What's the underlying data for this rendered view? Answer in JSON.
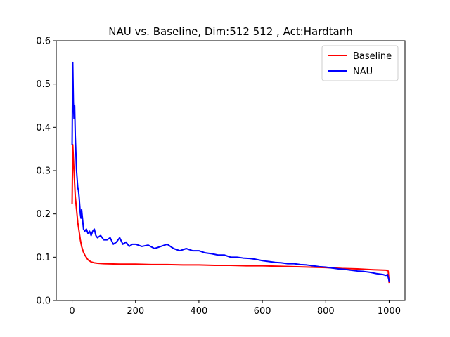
{
  "chart_data": {
    "type": "line",
    "title": "NAU vs. Baseline, Dim:512 512 , Act:Hardtanh",
    "xlabel": "",
    "ylabel": "",
    "xlim": [
      -50,
      1050
    ],
    "ylim": [
      0.0,
      0.6
    ],
    "xticks": [
      0,
      200,
      400,
      600,
      800,
      1000
    ],
    "yticks": [
      0.0,
      0.1,
      0.2,
      0.3,
      0.4,
      0.5,
      0.6
    ],
    "grid": false,
    "legend_position": "top-right",
    "series": [
      {
        "name": "Baseline",
        "color": "#ff0000",
        "points": [
          [
            0,
            0.225
          ],
          [
            2,
            0.36
          ],
          [
            4,
            0.33
          ],
          [
            6,
            0.3
          ],
          [
            8,
            0.27
          ],
          [
            10,
            0.24
          ],
          [
            14,
            0.21
          ],
          [
            18,
            0.18
          ],
          [
            22,
            0.16
          ],
          [
            26,
            0.14
          ],
          [
            30,
            0.125
          ],
          [
            35,
            0.113
          ],
          [
            40,
            0.105
          ],
          [
            50,
            0.094
          ],
          [
            60,
            0.089
          ],
          [
            70,
            0.087
          ],
          [
            80,
            0.086
          ],
          [
            100,
            0.085
          ],
          [
            150,
            0.084
          ],
          [
            200,
            0.084
          ],
          [
            250,
            0.083
          ],
          [
            300,
            0.083
          ],
          [
            350,
            0.082
          ],
          [
            400,
            0.082
          ],
          [
            450,
            0.081
          ],
          [
            500,
            0.081
          ],
          [
            550,
            0.08
          ],
          [
            600,
            0.08
          ],
          [
            650,
            0.079
          ],
          [
            700,
            0.078
          ],
          [
            750,
            0.077
          ],
          [
            800,
            0.076
          ],
          [
            850,
            0.074
          ],
          [
            900,
            0.073
          ],
          [
            950,
            0.071
          ],
          [
            990,
            0.07
          ],
          [
            997,
            0.068
          ],
          [
            1000,
            0.042
          ]
        ]
      },
      {
        "name": "NAU",
        "color": "#0000ff",
        "points": [
          [
            0,
            0.36
          ],
          [
            2,
            0.55
          ],
          [
            4,
            0.46
          ],
          [
            6,
            0.42
          ],
          [
            8,
            0.45
          ],
          [
            10,
            0.38
          ],
          [
            12,
            0.34
          ],
          [
            14,
            0.3
          ],
          [
            16,
            0.28
          ],
          [
            18,
            0.26
          ],
          [
            20,
            0.255
          ],
          [
            22,
            0.24
          ],
          [
            24,
            0.22
          ],
          [
            26,
            0.2
          ],
          [
            28,
            0.19
          ],
          [
            30,
            0.21
          ],
          [
            32,
            0.195
          ],
          [
            34,
            0.18
          ],
          [
            36,
            0.165
          ],
          [
            40,
            0.16
          ],
          [
            45,
            0.165
          ],
          [
            50,
            0.155
          ],
          [
            55,
            0.16
          ],
          [
            60,
            0.15
          ],
          [
            65,
            0.16
          ],
          [
            70,
            0.165
          ],
          [
            75,
            0.15
          ],
          [
            80,
            0.145
          ],
          [
            90,
            0.15
          ],
          [
            100,
            0.14
          ],
          [
            110,
            0.14
          ],
          [
            120,
            0.145
          ],
          [
            130,
            0.13
          ],
          [
            140,
            0.135
          ],
          [
            150,
            0.145
          ],
          [
            160,
            0.13
          ],
          [
            170,
            0.135
          ],
          [
            180,
            0.125
          ],
          [
            190,
            0.13
          ],
          [
            200,
            0.13
          ],
          [
            220,
            0.125
          ],
          [
            240,
            0.128
          ],
          [
            260,
            0.12
          ],
          [
            280,
            0.125
          ],
          [
            300,
            0.13
          ],
          [
            320,
            0.12
          ],
          [
            340,
            0.115
          ],
          [
            360,
            0.12
          ],
          [
            380,
            0.115
          ],
          [
            400,
            0.115
          ],
          [
            420,
            0.11
          ],
          [
            440,
            0.108
          ],
          [
            460,
            0.105
          ],
          [
            480,
            0.105
          ],
          [
            500,
            0.1
          ],
          [
            520,
            0.1
          ],
          [
            540,
            0.098
          ],
          [
            560,
            0.097
          ],
          [
            580,
            0.095
          ],
          [
            600,
            0.092
          ],
          [
            620,
            0.09
          ],
          [
            640,
            0.088
          ],
          [
            660,
            0.087
          ],
          [
            680,
            0.085
          ],
          [
            700,
            0.085
          ],
          [
            720,
            0.083
          ],
          [
            740,
            0.082
          ],
          [
            760,
            0.08
          ],
          [
            780,
            0.078
          ],
          [
            800,
            0.077
          ],
          [
            820,
            0.075
          ],
          [
            840,
            0.073
          ],
          [
            860,
            0.072
          ],
          [
            880,
            0.07
          ],
          [
            900,
            0.068
          ],
          [
            920,
            0.067
          ],
          [
            940,
            0.065
          ],
          [
            960,
            0.062
          ],
          [
            980,
            0.06
          ],
          [
            990,
            0.058
          ],
          [
            995,
            0.06
          ],
          [
            1000,
            0.045
          ]
        ]
      }
    ]
  }
}
